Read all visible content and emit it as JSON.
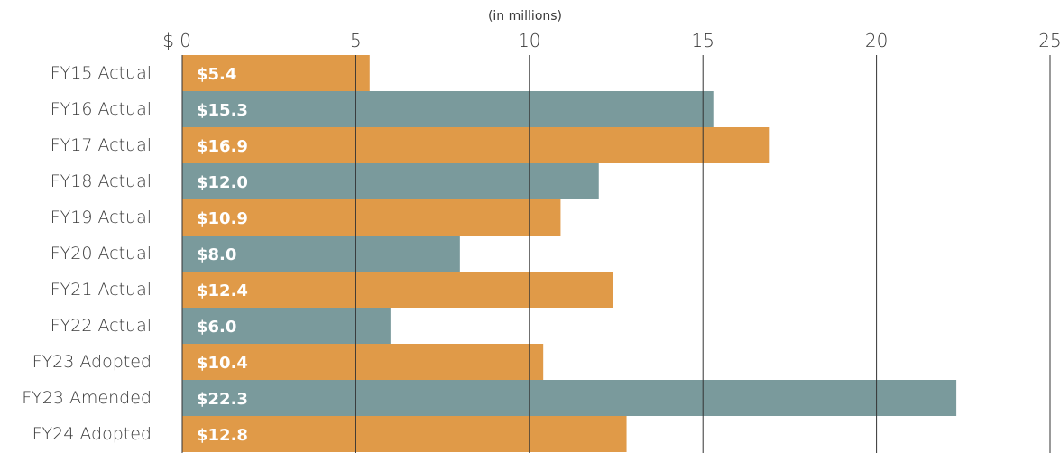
{
  "chart_data": {
    "type": "bar",
    "orientation": "horizontal",
    "unit_label": "(in millions)",
    "currency_prefix": "$",
    "categories": [
      "FY15 Actual",
      "FY16 Actual",
      "FY17 Actual",
      "FY18 Actual",
      "FY19 Actual",
      "FY20 Actual",
      "FY21 Actual",
      "FY22 Actual",
      "FY23 Adopted",
      "FY23 Amended",
      "FY24 Adopted"
    ],
    "values": [
      5.4,
      15.3,
      16.9,
      12.0,
      10.9,
      8.0,
      12.4,
      6.0,
      10.4,
      22.3,
      12.8
    ],
    "data_labels": [
      "$5.4",
      "$15.3",
      "$16.9",
      "$12.0",
      "$10.9",
      "$8.0",
      "$12.4",
      "$6.0",
      "$10.4",
      "$22.3",
      "$12.8"
    ],
    "xlim": [
      0,
      25
    ],
    "xticks": [
      0,
      5,
      10,
      15,
      20,
      25
    ],
    "xtick_labels": [
      "$ 0",
      "5",
      "10",
      "15",
      "20",
      "25"
    ],
    "axis_position": "top",
    "grid": true,
    "colors": [
      "#e09a48",
      "#7a9a9c"
    ],
    "title": "",
    "xlabel": "",
    "ylabel": ""
  }
}
